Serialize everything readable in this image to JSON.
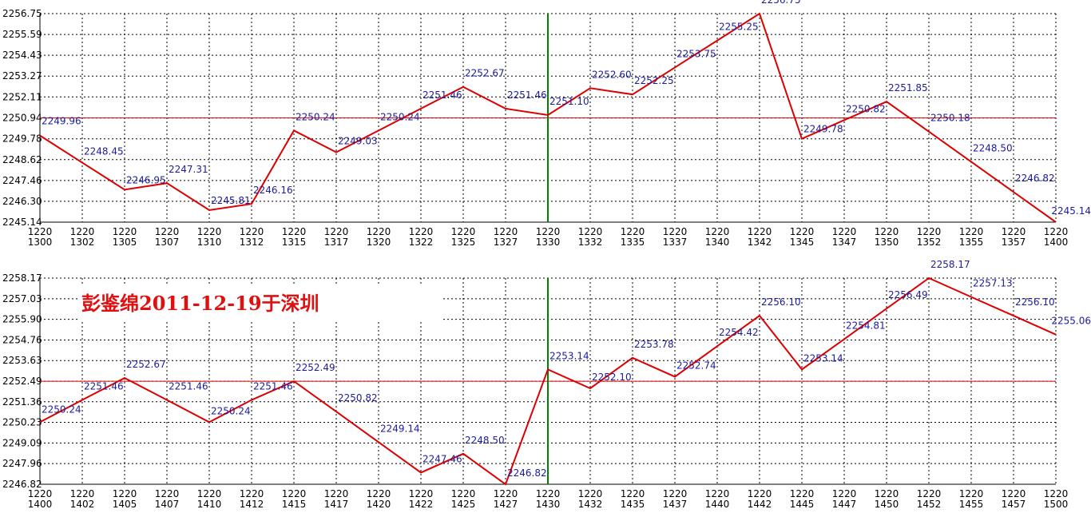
{
  "watermark": "彭鉴绵2011-12-19于深圳",
  "colors": {
    "line": "#dd0000",
    "label": "#1c1c9c",
    "reference": "#dd0000",
    "divider": "#008000",
    "grid": "#000000",
    "axis_text": "#000000"
  },
  "chart_data": [
    {
      "type": "line",
      "title": "",
      "xlabel": "",
      "ylabel": "",
      "grid": true,
      "x_ticks_top": [
        "1220",
        "1220",
        "1220",
        "1220",
        "1220",
        "1220",
        "1220",
        "1220",
        "1220",
        "1220",
        "1220",
        "1220",
        "1220",
        "1220",
        "1220",
        "1220",
        "1220",
        "1220",
        "1220",
        "1220",
        "1220",
        "1220",
        "1220",
        "1220",
        "1220"
      ],
      "x_ticks_bottom": [
        "1300",
        "1302",
        "1305",
        "1307",
        "1310",
        "1312",
        "1315",
        "1317",
        "1320",
        "1322",
        "1325",
        "1327",
        "1330",
        "1332",
        "1335",
        "1337",
        "1340",
        "1342",
        "1345",
        "1347",
        "1350",
        "1352",
        "1355",
        "1357",
        "1400"
      ],
      "y_ticks": [
        "2256.75",
        "2255.59",
        "2254.43",
        "2253.27",
        "2252.11",
        "2250.94",
        "2249.78",
        "2248.62",
        "2247.46",
        "2246.30",
        "2245.14"
      ],
      "ylim": [
        2245.14,
        2256.75
      ],
      "reference_line": 2250.94,
      "divider_at": "1330",
      "values": [
        2249.96,
        2248.45,
        2246.95,
        2247.31,
        2245.81,
        2246.16,
        2250.24,
        2249.03,
        2250.24,
        2251.46,
        2252.67,
        2251.46,
        2251.1,
        2252.6,
        2252.25,
        2253.75,
        2255.25,
        2256.75,
        2249.78,
        2250.82,
        2251.85,
        2250.18,
        2248.5,
        2246.82,
        2245.14
      ],
      "point_labels": [
        "2249.96",
        "2248.45",
        "2246.95",
        "2247.31",
        "2245.81",
        "2246.16",
        "2250.24",
        "2249.03",
        "2250.24",
        "2251.46",
        "2252.67",
        "2251.46",
        "2251.10",
        "2252.60",
        "2252.25",
        "2253.75",
        "2255.25",
        "2256.75",
        "2249.78",
        "2250.82",
        "2251.85",
        "2250.18",
        "2248.50",
        "2246.82",
        "2245.14"
      ]
    },
    {
      "type": "line",
      "title": "",
      "xlabel": "",
      "ylabel": "",
      "grid": true,
      "x_ticks_top": [
        "1220",
        "1220",
        "1220",
        "1220",
        "1220",
        "1220",
        "1220",
        "1220",
        "1220",
        "1220",
        "1220",
        "1220",
        "1220",
        "1220",
        "1220",
        "1220",
        "1220",
        "1220",
        "1220",
        "1220",
        "1220",
        "1220",
        "1220",
        "1220",
        "1220"
      ],
      "x_ticks_bottom": [
        "1400",
        "1402",
        "1405",
        "1407",
        "1410",
        "1412",
        "1415",
        "1417",
        "1420",
        "1422",
        "1425",
        "1427",
        "1430",
        "1432",
        "1435",
        "1437",
        "1440",
        "1442",
        "1445",
        "1447",
        "1450",
        "1452",
        "1455",
        "1457",
        "1500"
      ],
      "y_ticks": [
        "2258.17",
        "2257.03",
        "2255.90",
        "2254.76",
        "2253.63",
        "2252.49",
        "2251.36",
        "2250.23",
        "2249.09",
        "2247.96",
        "2246.82"
      ],
      "ylim": [
        2246.82,
        2258.17
      ],
      "reference_line": 2252.49,
      "divider_at": "1430",
      "values": [
        2250.24,
        2251.46,
        2252.67,
        2251.46,
        2250.24,
        2251.46,
        2252.49,
        2250.82,
        2249.14,
        2247.46,
        2248.5,
        2246.82,
        2253.14,
        2252.1,
        2253.78,
        2252.74,
        2254.42,
        2256.1,
        2253.14,
        2254.81,
        2256.49,
        2258.17,
        2257.13,
        2256.1,
        2255.06
      ],
      "point_labels": [
        "2250.24",
        "2251.46",
        "2252.67",
        "2251.46",
        "2250.24",
        "2251.46",
        "2252.49",
        "2250.82",
        "2249.14",
        "2247.46",
        "2248.50",
        "2246.82",
        "2253.14",
        "2252.10",
        "2253.78",
        "2252.74",
        "2254.42",
        "2256.10",
        "2253.14",
        "2254.81",
        "2256.49",
        "2258.17",
        "2257.13",
        "2256.10",
        "2255.06"
      ]
    }
  ]
}
